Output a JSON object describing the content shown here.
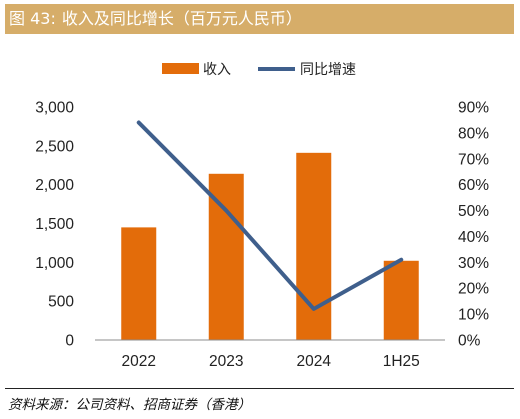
{
  "header": {
    "figure_label": "图 43:",
    "title": "收入及同比增长（百万元人民币）"
  },
  "chart_data": {
    "type": "bar",
    "categories": [
      "2022",
      "2023",
      "2024",
      "1H25"
    ],
    "series": [
      {
        "name": "收入",
        "kind": "bar",
        "axis": "left",
        "values": [
          1450,
          2140,
          2410,
          1020
        ]
      },
      {
        "name": "同比增速",
        "kind": "line",
        "axis": "right",
        "values": [
          84,
          50,
          12,
          31
        ]
      }
    ],
    "y_left": {
      "lim": [
        0,
        3000
      ],
      "ticks": [
        0,
        500,
        1000,
        1500,
        2000,
        2500,
        3000
      ],
      "tick_labels": [
        "0",
        "500",
        "1,000",
        "1,500",
        "2,000",
        "2,500",
        "3,000"
      ]
    },
    "y_right": {
      "lim": [
        0,
        90
      ],
      "ticks": [
        0,
        10,
        20,
        30,
        40,
        50,
        60,
        70,
        80,
        90
      ],
      "tick_labels": [
        "0%",
        "10%",
        "20%",
        "30%",
        "40%",
        "50%",
        "60%",
        "70%",
        "80%",
        "90%"
      ]
    },
    "legend_position": "top-center",
    "grid": false,
    "colors": {
      "bar": "#e36c0a",
      "line": "#3f5f8c",
      "title_bg": "#d6ad69"
    }
  },
  "footer": {
    "source": "资料来源：公司资料、招商证券（香港）"
  }
}
